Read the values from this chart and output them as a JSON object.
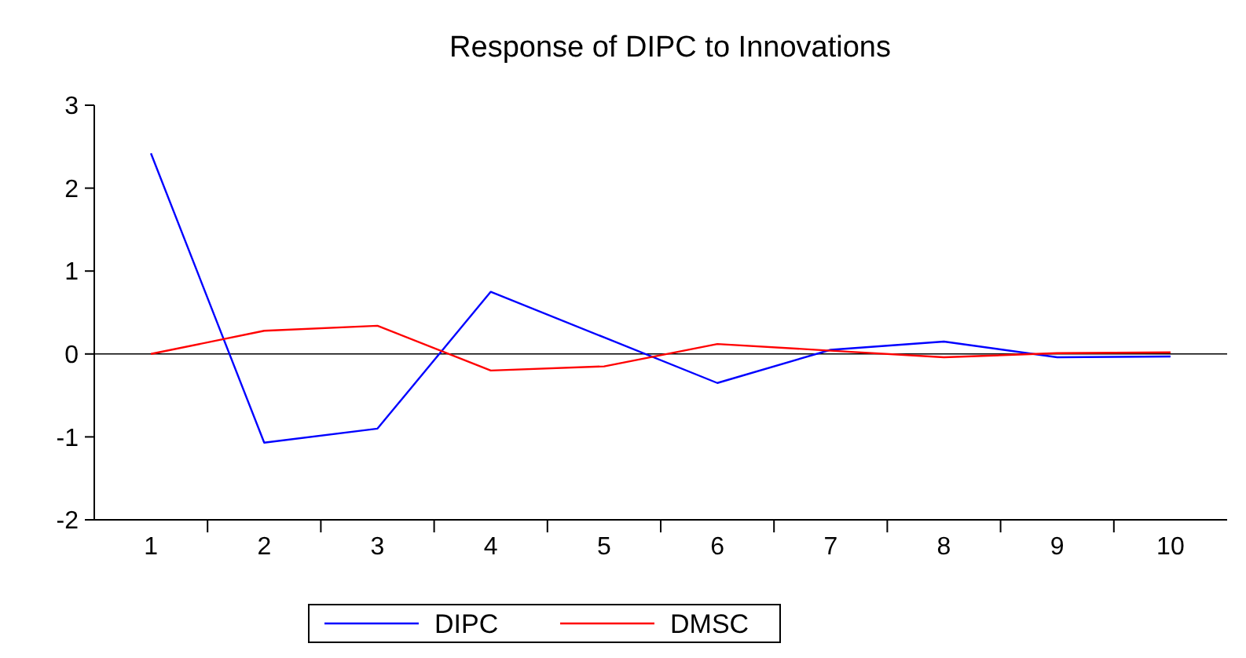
{
  "chart_data": {
    "type": "line",
    "title": "Response of DIPC to Innovations",
    "categories": [
      "1",
      "2",
      "3",
      "4",
      "5",
      "6",
      "7",
      "8",
      "9",
      "10"
    ],
    "series": [
      {
        "name": "DIPC",
        "color": "#0000ff",
        "values": [
          2.42,
          -1.07,
          -0.9,
          0.75,
          0.2,
          -0.35,
          0.05,
          0.15,
          -0.04,
          -0.03
        ]
      },
      {
        "name": "DMSC",
        "color": "#ff0000",
        "values": [
          0,
          0.28,
          0.34,
          -0.2,
          -0.15,
          0.12,
          0.04,
          -0.04,
          0.01,
          0.02
        ]
      }
    ],
    "ylim": [
      -2,
      3
    ],
    "yticks": [
      -2,
      -1,
      0,
      1,
      2,
      3
    ],
    "ref_lines": [
      {
        "axis": "y",
        "value": 0,
        "color": "#000000"
      }
    ],
    "legend": "bottom",
    "grid": false,
    "marker": "none",
    "line_style": "solid"
  }
}
